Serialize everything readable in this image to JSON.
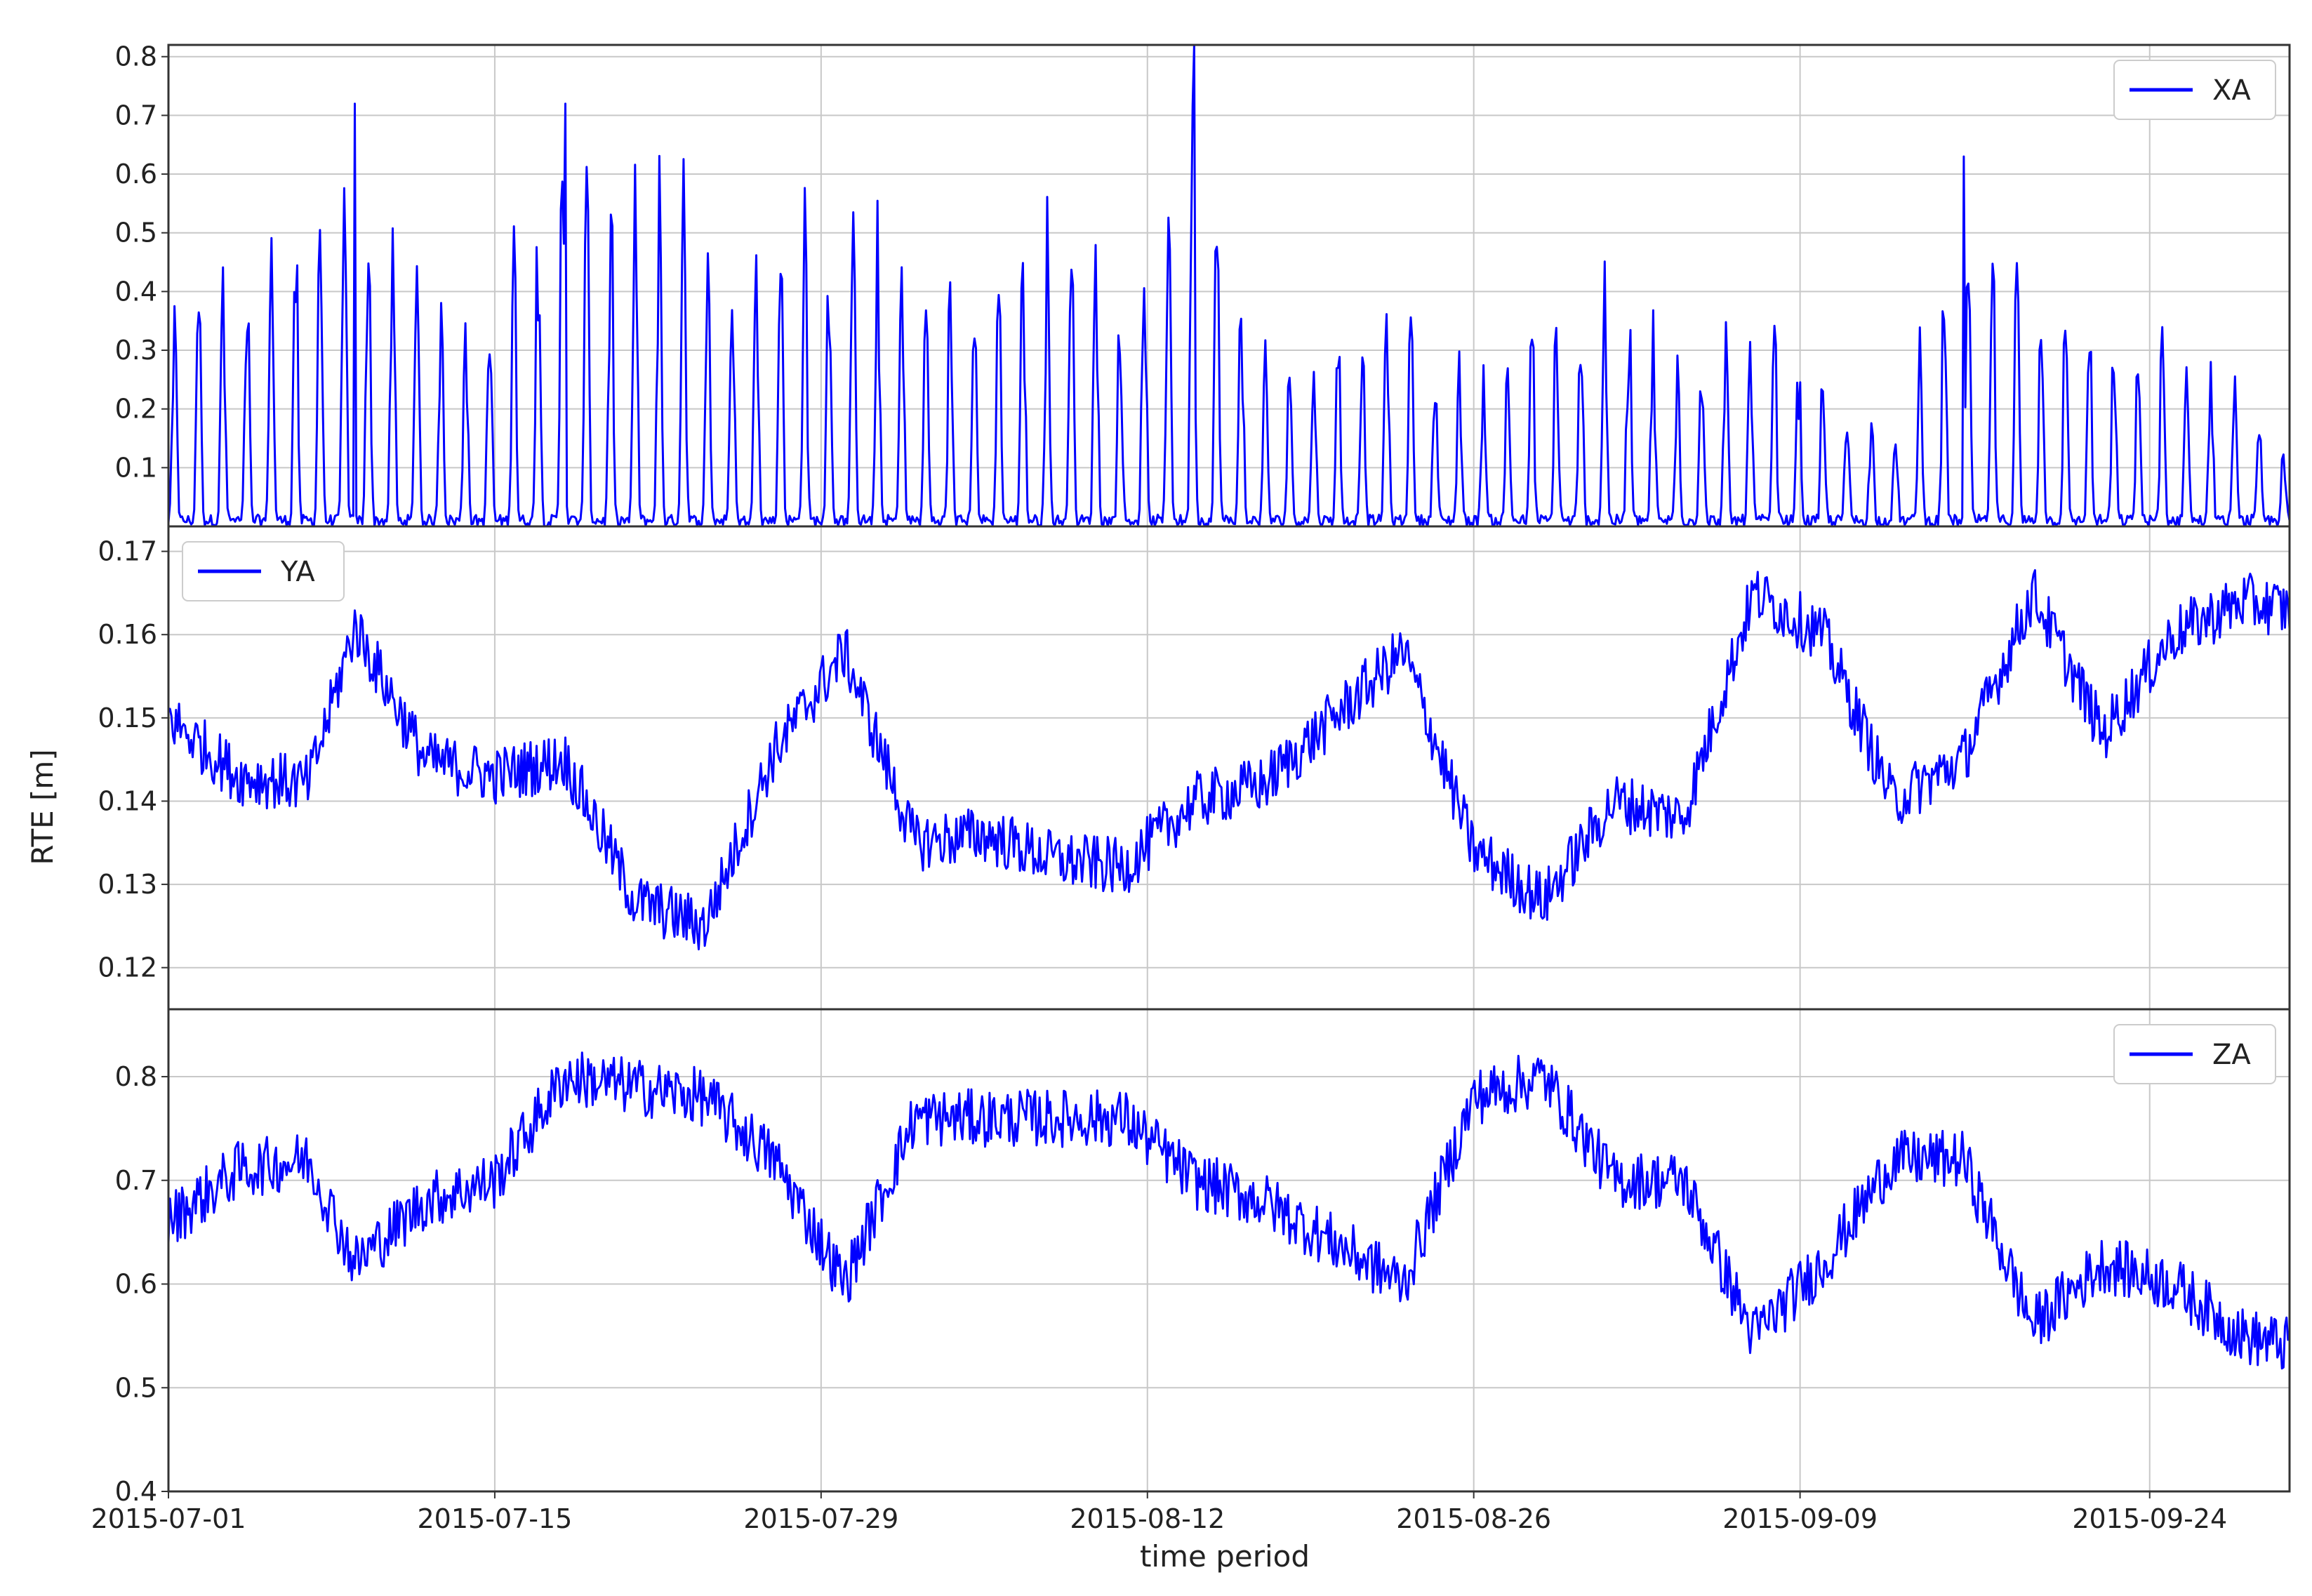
{
  "chart_data": {
    "type": "line",
    "subplots": 3,
    "shared_x": true,
    "xlabel": "time period",
    "ylabel": "RTE [m]",
    "x_range": [
      "2015-07-01",
      "2015-09-30"
    ],
    "x_ticks": [
      "2015-07-01",
      "2015-07-15",
      "2015-07-29",
      "2015-08-12",
      "2015-08-26",
      "2015-09-09",
      "2015-09-24"
    ],
    "grid": true,
    "line_color": "#0000ff",
    "panels": [
      {
        "name": "XA",
        "legend": "XA",
        "legend_position": "top-right",
        "ylim": [
          0.0,
          0.82
        ],
        "y_ticks": [
          0.1,
          0.2,
          0.3,
          0.4,
          0.5,
          0.6,
          0.7,
          0.8
        ],
        "y_tick_labels": [
          "0.1",
          "0.2",
          "0.3",
          "0.4",
          "0.5",
          "0.6",
          "0.7",
          "0.8"
        ],
        "series": {
          "x": [
            "2015-07-01",
            "2015-07-04",
            "2015-07-07",
            "2015-07-09",
            "2015-07-12",
            "2015-07-15",
            "2015-07-18",
            "2015-07-21",
            "2015-07-24",
            "2015-07-27",
            "2015-07-30",
            "2015-08-02",
            "2015-08-05",
            "2015-08-08",
            "2015-08-11",
            "2015-08-14",
            "2015-08-17",
            "2015-08-20",
            "2015-08-23",
            "2015-08-26",
            "2015-08-29",
            "2015-09-01",
            "2015-09-04",
            "2015-09-07",
            "2015-09-10",
            "2015-09-13",
            "2015-09-16",
            "2015-09-19",
            "2015-09-22",
            "2015-09-25",
            "2015-09-28",
            "2015-09-30"
          ],
          "y": [
            0.4,
            0.55,
            0.58,
            0.72,
            0.45,
            0.46,
            0.72,
            0.63,
            0.64,
            0.56,
            0.6,
            0.5,
            0.44,
            0.58,
            0.47,
            0.82,
            0.3,
            0.37,
            0.44,
            0.25,
            0.4,
            0.48,
            0.3,
            0.42,
            0.28,
            0.16,
            0.63,
            0.43,
            0.36,
            0.35,
            0.25,
            0.12
          ],
          "peak_labels": {
            "2015-07-09": 0.72,
            "2015-07-18": 0.72,
            "2015-08-14": 0.82,
            "2015-09-16": 0.63
          }
        }
      },
      {
        "name": "YA",
        "legend": "YA",
        "legend_position": "top-left",
        "ylim": [
          0.115,
          0.173
        ],
        "y_ticks": [
          0.12,
          0.13,
          0.14,
          0.15,
          0.16,
          0.17
        ],
        "y_tick_labels": [
          "0.12",
          "0.13",
          "0.14",
          "0.15",
          "0.16",
          "0.17"
        ],
        "series": {
          "x": [
            "2015-07-01",
            "2015-07-04",
            "2015-07-07",
            "2015-07-09",
            "2015-07-12",
            "2015-07-15",
            "2015-07-18",
            "2015-07-21",
            "2015-07-24",
            "2015-07-27",
            "2015-07-30",
            "2015-08-02",
            "2015-08-05",
            "2015-08-08",
            "2015-08-11",
            "2015-08-14",
            "2015-08-17",
            "2015-08-20",
            "2015-08-23",
            "2015-08-26",
            "2015-08-29",
            "2015-09-01",
            "2015-09-04",
            "2015-09-07",
            "2015-09-10",
            "2015-09-13",
            "2015-09-16",
            "2015-09-19",
            "2015-09-22",
            "2015-09-25",
            "2015-09-28",
            "2015-09-30"
          ],
          "y": [
            0.15,
            0.143,
            0.142,
            0.161,
            0.145,
            0.143,
            0.145,
            0.128,
            0.125,
            0.146,
            0.158,
            0.135,
            0.136,
            0.133,
            0.132,
            0.14,
            0.142,
            0.15,
            0.158,
            0.134,
            0.128,
            0.14,
            0.138,
            0.165,
            0.16,
            0.14,
            0.145,
            0.165,
            0.148,
            0.16,
            0.164,
            0.163
          ]
        }
      },
      {
        "name": "ZA",
        "legend": "ZA",
        "legend_position": "top-right",
        "ylim": [
          0.4,
          0.865
        ],
        "y_ticks": [
          0.4,
          0.5,
          0.6,
          0.7,
          0.8
        ],
        "y_tick_labels": [
          "0.4",
          "0.5",
          "0.6",
          "0.7",
          "0.8"
        ],
        "series": {
          "x": [
            "2015-07-01",
            "2015-07-04",
            "2015-07-07",
            "2015-07-09",
            "2015-07-12",
            "2015-07-15",
            "2015-07-18",
            "2015-07-21",
            "2015-07-24",
            "2015-07-27",
            "2015-07-30",
            "2015-08-02",
            "2015-08-05",
            "2015-08-08",
            "2015-08-11",
            "2015-08-14",
            "2015-08-17",
            "2015-08-20",
            "2015-08-23",
            "2015-08-26",
            "2015-08-29",
            "2015-09-01",
            "2015-09-04",
            "2015-09-07",
            "2015-09-10",
            "2015-09-13",
            "2015-09-16",
            "2015-09-19",
            "2015-09-22",
            "2015-09-25",
            "2015-09-28",
            "2015-09-30"
          ],
          "y": [
            0.66,
            0.71,
            0.72,
            0.62,
            0.68,
            0.7,
            0.8,
            0.79,
            0.78,
            0.72,
            0.6,
            0.76,
            0.76,
            0.76,
            0.76,
            0.7,
            0.68,
            0.64,
            0.6,
            0.78,
            0.8,
            0.7,
            0.7,
            0.55,
            0.62,
            0.72,
            0.72,
            0.56,
            0.62,
            0.6,
            0.55,
            0.54
          ]
        }
      }
    ]
  }
}
